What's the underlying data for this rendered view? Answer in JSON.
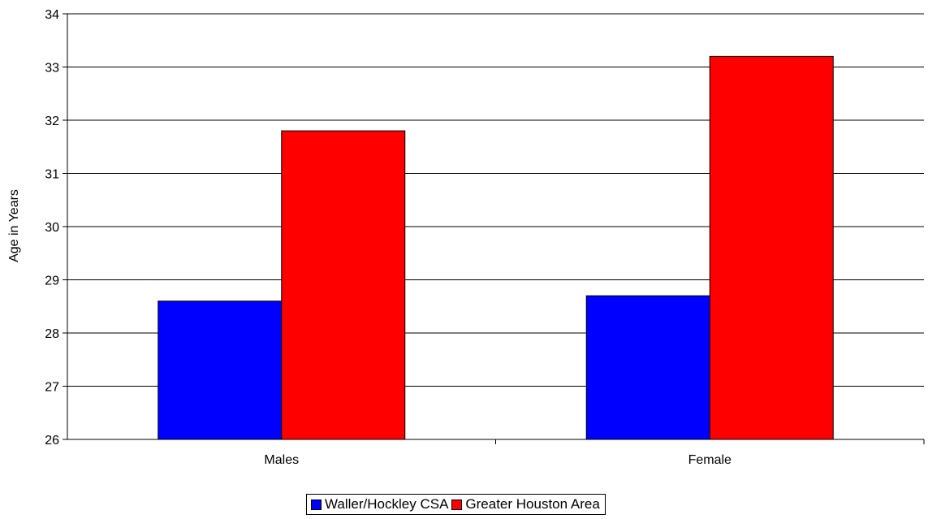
{
  "chart_data": {
    "type": "bar",
    "title": "",
    "xlabel": "",
    "ylabel": "Age in Years",
    "ylim": [
      26,
      34
    ],
    "yticks": [
      "26",
      "27",
      "28",
      "29",
      "30",
      "31",
      "32",
      "33",
      "34"
    ],
    "categories": [
      "Males",
      "Female"
    ],
    "series": [
      {
        "name": "Waller/Hockley CSA",
        "color": "#0000ff",
        "values": [
          28.6,
          28.7
        ]
      },
      {
        "name": "Greater Houston Area",
        "color": "#ff0000",
        "values": [
          31.8,
          33.2
        ]
      }
    ],
    "grid": true,
    "legend_position": "bottom"
  }
}
